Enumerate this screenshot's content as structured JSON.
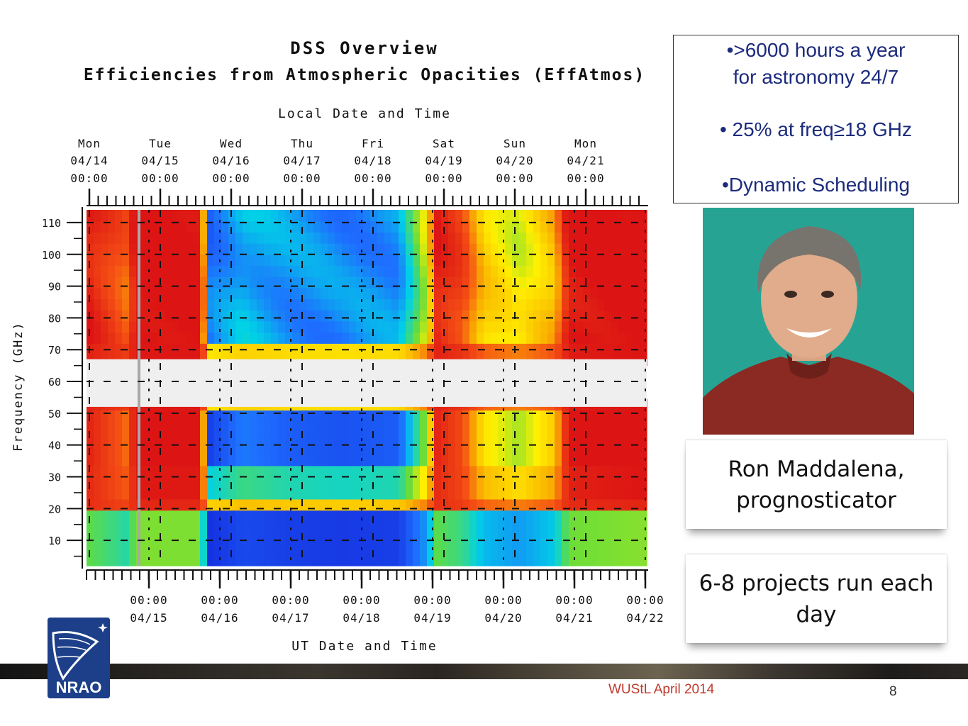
{
  "chart_data": {
    "type": "heatmap",
    "title": "DSS Overview",
    "subtitle": "Efficiencies from Atmospheric Opacities (EffAtmos)",
    "top_axis_label": "Local Date and Time",
    "bottom_axis_label": "UT Date and Time",
    "ylabel": "Frequency (GHz)",
    "ylim": [
      2,
      114
    ],
    "yticks": [
      "110",
      "100",
      "90",
      "80",
      "70",
      "60",
      "50",
      "40",
      "30",
      "20",
      "10"
    ],
    "top_ticks": [
      {
        "day": "Mon",
        "date": "04/14",
        "time": "00:00"
      },
      {
        "day": "Tue",
        "date": "04/15",
        "time": "00:00"
      },
      {
        "day": "Wed",
        "date": "04/16",
        "time": "00:00"
      },
      {
        "day": "Thu",
        "date": "04/17",
        "time": "00:00"
      },
      {
        "day": "Fri",
        "date": "04/18",
        "time": "00:00"
      },
      {
        "day": "Sat",
        "date": "04/19",
        "time": "00:00"
      },
      {
        "day": "Sun",
        "date": "04/20",
        "time": "00:00"
      },
      {
        "day": "Mon",
        "date": "04/21",
        "time": "00:00"
      }
    ],
    "bottom_ticks": [
      {
        "time": "00:00",
        "date": "04/15"
      },
      {
        "time": "00:00",
        "date": "04/16"
      },
      {
        "time": "00:00",
        "date": "04/17"
      },
      {
        "time": "00:00",
        "date": "04/18"
      },
      {
        "time": "00:00",
        "date": "04/19"
      },
      {
        "time": "00:00",
        "date": "04/20"
      },
      {
        "time": "00:00",
        "date": "04/21"
      },
      {
        "time": "00:00",
        "date": "04/22"
      }
    ],
    "excluded_band_ghz": [
      52,
      67
    ],
    "grid": true
  },
  "bullets": [
    "•>6000 hours a year",
    "for astronomy 24/7",
    "•  25% at freq≥18 GHz",
    "•Dynamic Scheduling"
  ],
  "photo_alt": "person-photo",
  "caption_card": {
    "line1": "Ron Maddalena,",
    "line2": "prognosticator"
  },
  "projects_card": {
    "line1": "6-8 projects run each",
    "line2": "day"
  },
  "logo_text": "NRAO",
  "footer_text": "WUStL April 2014",
  "page_number": "8"
}
